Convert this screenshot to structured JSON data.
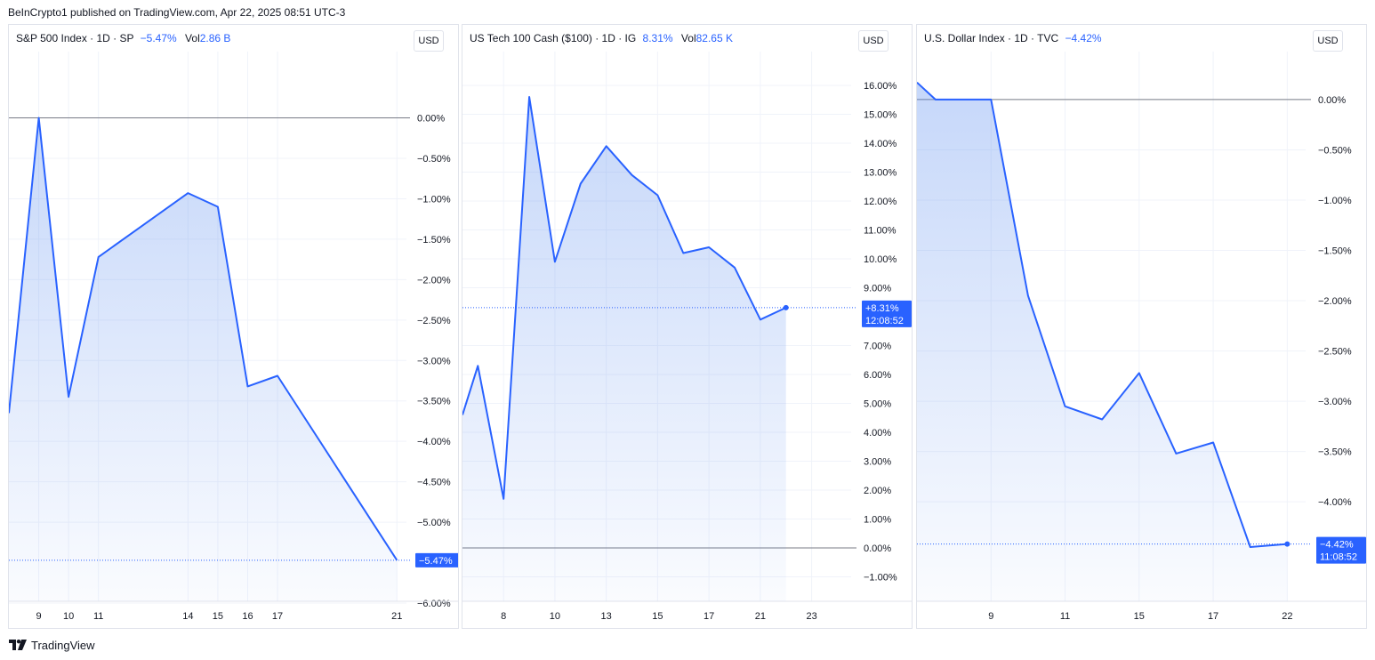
{
  "header": {
    "text": "BeInCrypto1 published on TradingView.com, Apr 22, 2025 08:51 UTC-3"
  },
  "footer": {
    "brand": "TradingView"
  },
  "colors": {
    "line": "#2962ff",
    "fill": "#5b8def",
    "grid": "#f0f3fa",
    "zero": "#787b86",
    "badge": "#2962ff"
  },
  "chart_data": [
    {
      "type": "area",
      "name": "S&P 500 Index",
      "legend": {
        "title": "S&P 500 Index · 1D · SP",
        "change": "−5.47%",
        "vol_label": "Vol",
        "vol_value": "2.86 B"
      },
      "currency": "USD",
      "x": [
        8,
        9,
        10,
        11,
        14,
        15,
        16,
        17,
        21
      ],
      "values": [
        -3.65,
        0.0,
        -3.45,
        -1.72,
        -0.93,
        -1.1,
        -3.32,
        -3.19,
        -5.47
      ],
      "xlim": [
        8.0,
        21.2
      ],
      "ylim": [
        -6.0,
        0.6
      ],
      "y_ticks": [
        0.0,
        -0.5,
        -1.0,
        -1.5,
        -2.0,
        -2.5,
        -3.0,
        -3.5,
        -4.0,
        -4.5,
        -5.0,
        -6.0
      ],
      "y_tick_labels": [
        "0.00%",
        "−0.50%",
        "−1.00%",
        "−1.50%",
        "−2.00%",
        "−2.50%",
        "−3.00%",
        "−3.50%",
        "−4.00%",
        "−4.50%",
        "−5.00%",
        "−6.00%"
      ],
      "x_ticks": [
        9,
        10,
        11,
        14,
        15,
        16,
        17,
        21
      ],
      "x_tick_labels": [
        "9",
        "10",
        "11",
        "14",
        "15",
        "16",
        "17",
        "21"
      ],
      "last_label": "−5.47%",
      "last_time": ""
    },
    {
      "type": "area",
      "name": "US Tech 100 Cash ($100)",
      "legend": {
        "title": "US Tech 100 Cash ($100) · 1D · IG",
        "change": "8.31%",
        "vol_label": "Vol",
        "vol_value": "82.65 K"
      },
      "currency": "USD",
      "x": [
        6.0,
        6.6,
        7.6,
        8.6,
        9.6,
        10.6,
        11.6,
        12.6,
        13.6,
        14.6,
        15.6,
        16.6,
        17.6,
        18.6,
        19.6
      ],
      "values": [
        4.6,
        6.3,
        1.7,
        15.6,
        9.9,
        12.6,
        13.9,
        12.9,
        12.2,
        10.2,
        10.4,
        9.7,
        7.9,
        8.31,
        null
      ],
      "xlim": [
        6.0,
        21.0
      ],
      "ylim": [
        -1.6,
        16.8
      ],
      "y_ticks": [
        16,
        15,
        14,
        13,
        12,
        11,
        10,
        9,
        7,
        6,
        5,
        4,
        3,
        2,
        1,
        0,
        -1
      ],
      "y_tick_labels": [
        "16.00%",
        "15.00%",
        "14.00%",
        "13.00%",
        "12.00%",
        "11.00%",
        "10.00%",
        "9.00%",
        "7.00%",
        "6.00%",
        "5.00%",
        "4.00%",
        "3.00%",
        "2.00%",
        "1.00%",
        "0.00%",
        "−1.00%"
      ],
      "x_ticks": [
        7.6,
        9.6,
        11.6,
        13.6,
        15.6,
        17.6,
        19.6
      ],
      "x_tick_labels": [
        "8",
        "10",
        "13",
        "15",
        "17",
        "21",
        "23"
      ],
      "last_label": "+8.31%",
      "last_time": "12:08:52"
    },
    {
      "type": "area",
      "name": "U.S. Dollar Index",
      "legend": {
        "title": "U.S. Dollar Index · 1D · TVC",
        "change": "−4.42%",
        "vol_label": "",
        "vol_value": ""
      },
      "currency": "USD",
      "x": [
        7.0,
        7.5,
        9.0,
        10.0,
        11.0,
        12.0,
        13.0,
        14.0,
        15.0,
        16.0,
        17.0
      ],
      "values": [
        0.17,
        0.0,
        0.0,
        -1.95,
        -3.05,
        -3.18,
        -2.72,
        -3.52,
        -3.41,
        -4.45,
        -4.42
      ],
      "xlim": [
        7.0,
        17.4
      ],
      "ylim": [
        -4.6,
        0.3
      ],
      "y_ticks": [
        0.0,
        -0.5,
        -1.0,
        -1.5,
        -2.0,
        -2.5,
        -3.0,
        -3.5,
        -4.0
      ],
      "y_tick_labels": [
        "0.00%",
        "−0.50%",
        "−1.00%",
        "−1.50%",
        "−2.00%",
        "−2.50%",
        "−3.00%",
        "−3.50%",
        "−4.00%"
      ],
      "x_ticks": [
        9.0,
        11.0,
        13.0,
        15.0,
        17.0
      ],
      "x_tick_labels": [
        "9",
        "11",
        "15",
        "17",
        "22"
      ],
      "last_label": "−4.42%",
      "last_time": "11:08:52"
    }
  ]
}
